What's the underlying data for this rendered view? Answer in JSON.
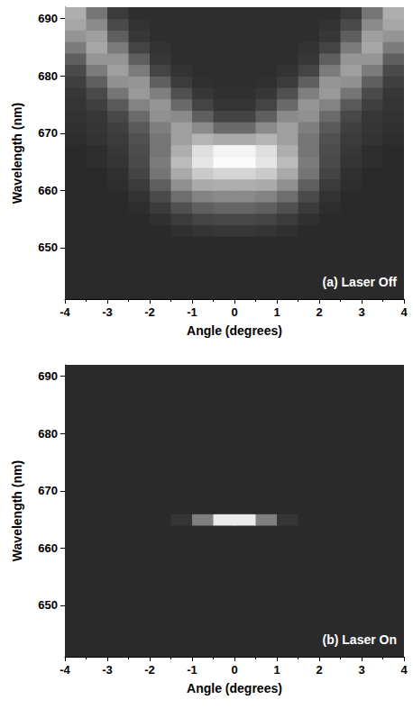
{
  "chart_data": [
    {
      "type": "heatmap",
      "annotation": "(a) Laser Off",
      "x_label": "Angle (degrees)",
      "y_label": "Wavelength (nm)",
      "xlim": [
        -4,
        4
      ],
      "xticks": [
        -4,
        -3,
        -2,
        -1,
        0,
        1,
        2,
        3,
        4
      ],
      "ylim": [
        641,
        692
      ],
      "yticks": [
        650,
        660,
        670,
        680,
        690
      ],
      "value_range": [
        0,
        100
      ],
      "x": [
        -3.75,
        -3.25,
        -2.75,
        -2.25,
        -1.75,
        -1.25,
        -0.75,
        -0.25,
        0.25,
        0.75,
        1.25,
        1.75,
        2.25,
        2.75,
        3.25,
        3.75
      ],
      "y": [
        641,
        643,
        645,
        647,
        649,
        651,
        653,
        655,
        657,
        659,
        661,
        663,
        665,
        667,
        669,
        671,
        673,
        675,
        677,
        679,
        681,
        683,
        685,
        687,
        689,
        691
      ],
      "values": [
        [
          0,
          0,
          0,
          0,
          0,
          0,
          0,
          0,
          0,
          0,
          0,
          0,
          0,
          0,
          0,
          0
        ],
        [
          0,
          0,
          0,
          0,
          0,
          0,
          0,
          0,
          0,
          0,
          0,
          0,
          0,
          0,
          0,
          0
        ],
        [
          0,
          0,
          0,
          0,
          0,
          0,
          0,
          0,
          0,
          0,
          0,
          0,
          0,
          0,
          0,
          0
        ],
        [
          0,
          0,
          0,
          0,
          0,
          0,
          0,
          0,
          0,
          0,
          0,
          0,
          0,
          0,
          0,
          0
        ],
        [
          0,
          0,
          0,
          0,
          0,
          0,
          0,
          0,
          0,
          0,
          0,
          0,
          0,
          0,
          0,
          0
        ],
        [
          0,
          0,
          0,
          0,
          0,
          0,
          0,
          0,
          0,
          0,
          0,
          0,
          0,
          0,
          0,
          0
        ],
        [
          0,
          0,
          0,
          0,
          0,
          3,
          5,
          6,
          6,
          5,
          3,
          0,
          0,
          0,
          0,
          0
        ],
        [
          0,
          0,
          0,
          0,
          3,
          8,
          12,
          14,
          14,
          12,
          8,
          3,
          0,
          0,
          0,
          0
        ],
        [
          0,
          0,
          0,
          2,
          8,
          18,
          25,
          28,
          28,
          25,
          18,
          8,
          2,
          0,
          0,
          0
        ],
        [
          0,
          0,
          0,
          4,
          15,
          32,
          42,
          45,
          45,
          42,
          32,
          15,
          4,
          0,
          0,
          0
        ],
        [
          0,
          0,
          2,
          8,
          25,
          48,
          60,
          62,
          62,
          60,
          48,
          25,
          8,
          2,
          0,
          0
        ],
        [
          0,
          0,
          3,
          12,
          35,
          60,
          75,
          80,
          80,
          75,
          60,
          35,
          12,
          3,
          0,
          0
        ],
        [
          0,
          2,
          5,
          15,
          38,
          68,
          88,
          98,
          98,
          88,
          68,
          38,
          15,
          5,
          2,
          0
        ],
        [
          0,
          2,
          6,
          16,
          35,
          62,
          85,
          95,
          95,
          85,
          62,
          35,
          16,
          6,
          2,
          0
        ],
        [
          2,
          4,
          8,
          18,
          35,
          55,
          65,
          60,
          60,
          65,
          55,
          35,
          18,
          8,
          4,
          2
        ],
        [
          3,
          5,
          10,
          22,
          40,
          55,
          45,
          30,
          30,
          45,
          55,
          40,
          22,
          10,
          5,
          3
        ],
        [
          4,
          6,
          14,
          30,
          48,
          45,
          25,
          12,
          12,
          25,
          45,
          48,
          30,
          14,
          6,
          4
        ],
        [
          5,
          10,
          22,
          42,
          50,
          30,
          12,
          5,
          5,
          12,
          30,
          50,
          42,
          22,
          10,
          5
        ],
        [
          6,
          15,
          35,
          52,
          40,
          18,
          6,
          3,
          3,
          6,
          18,
          40,
          52,
          35,
          15,
          6
        ],
        [
          10,
          25,
          48,
          50,
          25,
          8,
          3,
          2,
          2,
          3,
          8,
          25,
          50,
          48,
          25,
          10
        ],
        [
          15,
          38,
          55,
          38,
          12,
          4,
          2,
          2,
          2,
          2,
          4,
          12,
          38,
          55,
          38,
          15
        ],
        [
          25,
          50,
          50,
          25,
          6,
          2,
          2,
          2,
          2,
          2,
          2,
          6,
          25,
          50,
          50,
          25
        ],
        [
          38,
          58,
          38,
          12,
          4,
          2,
          2,
          2,
          2,
          2,
          2,
          4,
          12,
          38,
          58,
          38
        ],
        [
          50,
          55,
          25,
          6,
          2,
          2,
          2,
          2,
          2,
          2,
          2,
          2,
          6,
          25,
          55,
          50
        ],
        [
          58,
          45,
          15,
          4,
          2,
          2,
          2,
          2,
          2,
          2,
          2,
          2,
          4,
          15,
          45,
          58
        ],
        [
          62,
          35,
          8,
          2,
          2,
          2,
          2,
          2,
          2,
          2,
          2,
          2,
          2,
          8,
          35,
          62
        ]
      ]
    },
    {
      "type": "heatmap",
      "annotation": "(b) Laser On",
      "x_label": "Angle (degrees)",
      "y_label": "Wavelength (nm)",
      "xlim": [
        -4,
        4
      ],
      "xticks": [
        -4,
        -3,
        -2,
        -1,
        0,
        1,
        2,
        3,
        4
      ],
      "ylim": [
        641,
        692
      ],
      "yticks": [
        650,
        660,
        670,
        680,
        690
      ],
      "value_range": [
        0,
        100
      ],
      "x": [
        -3.75,
        -3.25,
        -2.75,
        -2.25,
        -1.75,
        -1.25,
        -0.75,
        -0.25,
        0.25,
        0.75,
        1.25,
        1.75,
        2.25,
        2.75,
        3.25,
        3.75
      ],
      "y": [
        641,
        643,
        645,
        647,
        649,
        651,
        653,
        655,
        657,
        659,
        661,
        663,
        665,
        667,
        669,
        671,
        673,
        675,
        677,
        679,
        681,
        683,
        685,
        687,
        689,
        691
      ],
      "values": [
        [
          0,
          0,
          0,
          0,
          0,
          0,
          0,
          0,
          0,
          0,
          0,
          0,
          0,
          0,
          0,
          0
        ],
        [
          0,
          0,
          0,
          0,
          0,
          0,
          0,
          0,
          0,
          0,
          0,
          0,
          0,
          0,
          0,
          0
        ],
        [
          0,
          0,
          0,
          0,
          0,
          0,
          0,
          0,
          0,
          0,
          0,
          0,
          0,
          0,
          0,
          0
        ],
        [
          0,
          0,
          0,
          0,
          0,
          0,
          0,
          0,
          0,
          0,
          0,
          0,
          0,
          0,
          0,
          0
        ],
        [
          0,
          0,
          0,
          0,
          0,
          0,
          0,
          0,
          0,
          0,
          0,
          0,
          0,
          0,
          0,
          0
        ],
        [
          0,
          0,
          0,
          0,
          0,
          0,
          0,
          0,
          0,
          0,
          0,
          0,
          0,
          0,
          0,
          0
        ],
        [
          0,
          0,
          0,
          0,
          0,
          0,
          0,
          0,
          0,
          0,
          0,
          0,
          0,
          0,
          0,
          0
        ],
        [
          0,
          0,
          0,
          0,
          0,
          0,
          0,
          0,
          0,
          0,
          0,
          0,
          0,
          0,
          0,
          0
        ],
        [
          0,
          0,
          0,
          0,
          0,
          0,
          0,
          0,
          0,
          0,
          0,
          0,
          0,
          0,
          0,
          0
        ],
        [
          0,
          0,
          0,
          0,
          0,
          0,
          0,
          0,
          0,
          0,
          0,
          0,
          0,
          0,
          0,
          0
        ],
        [
          0,
          0,
          0,
          0,
          0,
          0,
          0,
          0,
          0,
          0,
          0,
          0,
          0,
          0,
          0,
          0
        ],
        [
          0,
          0,
          0,
          0,
          0,
          0,
          0,
          0,
          0,
          0,
          0,
          0,
          0,
          0,
          0,
          0
        ],
        [
          0,
          0,
          0,
          0,
          0,
          5,
          40,
          90,
          90,
          40,
          5,
          0,
          0,
          0,
          0,
          0
        ],
        [
          0,
          0,
          0,
          0,
          0,
          0,
          0,
          0,
          0,
          0,
          0,
          0,
          0,
          0,
          0,
          0
        ],
        [
          0,
          0,
          0,
          0,
          0,
          0,
          0,
          0,
          0,
          0,
          0,
          0,
          0,
          0,
          0,
          0
        ],
        [
          0,
          0,
          0,
          0,
          0,
          0,
          0,
          0,
          0,
          0,
          0,
          0,
          0,
          0,
          0,
          0
        ],
        [
          0,
          0,
          0,
          0,
          0,
          0,
          0,
          0,
          0,
          0,
          0,
          0,
          0,
          0,
          0,
          0
        ],
        [
          0,
          0,
          0,
          0,
          0,
          0,
          0,
          0,
          0,
          0,
          0,
          0,
          0,
          0,
          0,
          0
        ],
        [
          0,
          0,
          0,
          0,
          0,
          0,
          0,
          0,
          0,
          0,
          0,
          0,
          0,
          0,
          0,
          0
        ],
        [
          0,
          0,
          0,
          0,
          0,
          0,
          0,
          0,
          0,
          0,
          0,
          0,
          0,
          0,
          0,
          0
        ],
        [
          0,
          0,
          0,
          0,
          0,
          0,
          0,
          0,
          0,
          0,
          0,
          0,
          0,
          0,
          0,
          0
        ],
        [
          0,
          0,
          0,
          0,
          0,
          0,
          0,
          0,
          0,
          0,
          0,
          0,
          0,
          0,
          0,
          0
        ],
        [
          0,
          0,
          0,
          0,
          0,
          0,
          0,
          0,
          0,
          0,
          0,
          0,
          0,
          0,
          0,
          0
        ],
        [
          0,
          0,
          0,
          0,
          0,
          0,
          0,
          0,
          0,
          0,
          0,
          0,
          0,
          0,
          0,
          0
        ],
        [
          0,
          0,
          0,
          0,
          0,
          0,
          0,
          0,
          0,
          0,
          0,
          0,
          0,
          0,
          0,
          0
        ],
        [
          0,
          0,
          0,
          0,
          0,
          0,
          0,
          0,
          0,
          0,
          0,
          0,
          0,
          0,
          0,
          0
        ]
      ]
    }
  ]
}
